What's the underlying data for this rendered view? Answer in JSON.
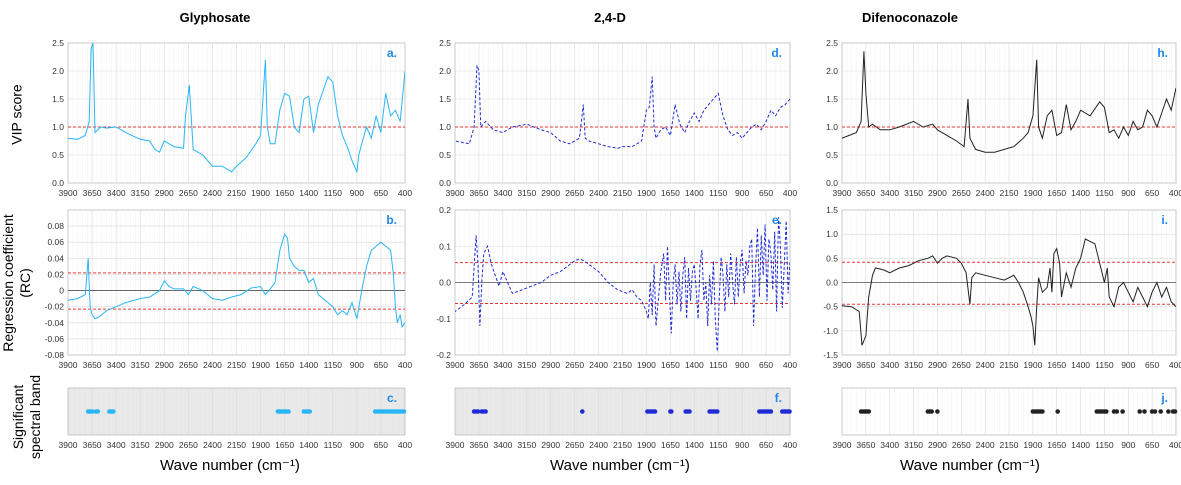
{
  "colors": {
    "glyphosate": "#29b6f6",
    "d24": "#1f2bd6",
    "difenoconazole": "#222222",
    "threshold": "#e53935",
    "grid": "#d9d9d9",
    "panel_label": "#1e88e5",
    "band_bg": "#e8e8e8"
  },
  "columns": [
    {
      "key": "glyphosate",
      "title": "Glyphosate"
    },
    {
      "key": "d24",
      "title": "2,4-D"
    },
    {
      "key": "difenoconazole",
      "title": "Difenoconazole"
    }
  ],
  "row_labels": {
    "vip": "VIP score",
    "rc_line1": "Regression coefficient",
    "rc_line2": "(RC)",
    "band_line1": "Significant",
    "band_line2": "spectral band"
  },
  "x_axis": {
    "label": "Wave number (cm⁻¹)",
    "ticks": [
      "3900",
      "3650",
      "3400",
      "3150",
      "2900",
      "2650",
      "2400",
      "2150",
      "1900",
      "1650",
      "1400",
      "1150",
      "900",
      "650",
      "400"
    ],
    "range": [
      3900,
      400
    ]
  },
  "chart_data": [
    {
      "type": "line",
      "panel": "a.",
      "series": "Glyphosate",
      "row": "VIP score",
      "ylim": [
        0,
        2.5
      ],
      "yticks": [
        "0.0",
        "0.5",
        "1.0",
        "1.5",
        "2.0",
        "2.5"
      ],
      "threshold": [
        1.0
      ],
      "x": [
        3990,
        3900,
        3800,
        3720,
        3680,
        3660,
        3640,
        3620,
        3560,
        3500,
        3400,
        3300,
        3150,
        3050,
        3000,
        2950,
        2900,
        2800,
        2700,
        2680,
        2640,
        2600,
        2500,
        2400,
        2300,
        2200,
        2150,
        2050,
        1950,
        1900,
        1850,
        1830,
        1800,
        1750,
        1700,
        1650,
        1600,
        1550,
        1500,
        1450,
        1400,
        1350,
        1300,
        1200,
        1150,
        1100,
        1050,
        1000,
        950,
        900,
        880,
        850,
        800,
        750,
        700,
        650,
        600,
        550,
        500,
        450,
        400
      ],
      "y": [
        0.9,
        0.8,
        0.78,
        0.85,
        1.1,
        2.4,
        2.5,
        0.9,
        1.0,
        0.98,
        1.0,
        0.9,
        0.78,
        0.75,
        0.6,
        0.55,
        0.75,
        0.65,
        0.62,
        1.2,
        1.75,
        0.6,
        0.5,
        0.3,
        0.3,
        0.2,
        0.3,
        0.45,
        0.7,
        0.85,
        2.2,
        1.0,
        0.7,
        0.7,
        1.3,
        1.6,
        1.55,
        1.0,
        0.9,
        1.5,
        1.55,
        0.9,
        1.4,
        1.9,
        1.8,
        1.2,
        0.85,
        0.65,
        0.4,
        0.2,
        0.5,
        0.7,
        1.0,
        0.8,
        1.2,
        0.9,
        1.6,
        1.2,
        1.3,
        1.1,
        2.0
      ]
    },
    {
      "type": "line",
      "panel": "d.",
      "series": "2,4-D",
      "row": "VIP score",
      "ylim": [
        0,
        2.5
      ],
      "yticks": [
        "0.0",
        "0.5",
        "1.0",
        "1.5",
        "2.0",
        "2.5"
      ],
      "threshold": [
        1.0
      ],
      "x": [
        3990,
        3900,
        3750,
        3700,
        3670,
        3650,
        3630,
        3580,
        3500,
        3400,
        3300,
        3150,
        3000,
        2900,
        2800,
        2700,
        2600,
        2560,
        2540,
        2500,
        2400,
        2300,
        2200,
        2150,
        2050,
        1950,
        1900,
        1870,
        1840,
        1820,
        1800,
        1750,
        1700,
        1650,
        1600,
        1550,
        1500,
        1450,
        1400,
        1350,
        1300,
        1200,
        1150,
        1100,
        1050,
        1000,
        950,
        900,
        850,
        800,
        750,
        700,
        650,
        600,
        550,
        500,
        450,
        400
      ],
      "y": [
        0.8,
        0.75,
        0.7,
        1.0,
        2.1,
        2.0,
        1.0,
        1.1,
        0.95,
        0.9,
        1.0,
        1.05,
        0.95,
        0.9,
        0.75,
        0.7,
        0.8,
        1.4,
        0.8,
        0.75,
        0.7,
        0.65,
        0.62,
        0.65,
        0.65,
        0.75,
        1.3,
        1.35,
        1.9,
        1.0,
        0.8,
        0.95,
        1.0,
        0.85,
        1.4,
        1.05,
        0.9,
        1.1,
        1.25,
        1.1,
        1.3,
        1.5,
        1.6,
        1.2,
        0.95,
        0.85,
        0.9,
        0.8,
        0.9,
        1.0,
        1.05,
        0.95,
        1.1,
        1.3,
        1.2,
        1.35,
        1.4,
        1.5
      ]
    },
    {
      "type": "line",
      "panel": "h.",
      "series": "Difenoconazole",
      "row": "VIP score",
      "ylim": [
        0,
        2.5
      ],
      "yticks": [
        "0.0",
        "0.5",
        "1.0",
        "1.5",
        "2.0",
        "2.5"
      ],
      "threshold": [
        1.0
      ],
      "x": [
        3990,
        3900,
        3750,
        3700,
        3670,
        3650,
        3620,
        3580,
        3500,
        3400,
        3300,
        3150,
        3050,
        2950,
        2900,
        2800,
        2700,
        2620,
        2580,
        2560,
        2500,
        2400,
        2300,
        2200,
        2100,
        2000,
        1950,
        1900,
        1860,
        1840,
        1800,
        1750,
        1700,
        1650,
        1600,
        1550,
        1500,
        1450,
        1400,
        1300,
        1200,
        1150,
        1100,
        1050,
        1000,
        950,
        900,
        850,
        800,
        750,
        700,
        650,
        600,
        550,
        500,
        450,
        400
      ],
      "y": [
        0.8,
        0.8,
        0.9,
        1.1,
        2.35,
        1.6,
        1.0,
        1.05,
        0.95,
        0.95,
        1.0,
        1.1,
        1.0,
        1.05,
        0.95,
        0.85,
        0.75,
        0.65,
        1.5,
        0.8,
        0.6,
        0.55,
        0.55,
        0.6,
        0.65,
        0.8,
        0.9,
        1.2,
        2.2,
        1.0,
        0.8,
        1.2,
        1.3,
        0.85,
        0.9,
        1.4,
        0.95,
        1.1,
        1.3,
        1.2,
        1.45,
        1.35,
        0.9,
        0.95,
        0.8,
        1.0,
        0.85,
        1.1,
        0.95,
        1.0,
        1.3,
        1.2,
        1.0,
        1.25,
        1.5,
        1.3,
        1.7
      ]
    },
    {
      "type": "line",
      "panel": "b.",
      "series": "Glyphosate",
      "row": "Regression coefficient (RC)",
      "ylim": [
        -0.08,
        0.1
      ],
      "yticks": [
        "-0.08",
        "-0.06",
        "-0.04",
        "-0.02",
        "0",
        "0.02",
        "0.04",
        "0.06",
        "0.08"
      ],
      "threshold": [
        0.022,
        -0.023
      ],
      "x": [
        3990,
        3900,
        3800,
        3720,
        3690,
        3670,
        3650,
        3620,
        3580,
        3500,
        3400,
        3300,
        3150,
        3050,
        2950,
        2900,
        2850,
        2800,
        2700,
        2650,
        2600,
        2500,
        2400,
        2300,
        2200,
        2100,
        2000,
        1900,
        1850,
        1800,
        1750,
        1700,
        1650,
        1620,
        1600,
        1550,
        1500,
        1450,
        1400,
        1350,
        1300,
        1200,
        1150,
        1100,
        1050,
        1000,
        950,
        900,
        850,
        800,
        750,
        700,
        650,
        600,
        550,
        520,
        500,
        480,
        450,
        430,
        400
      ],
      "y": [
        -0.01,
        -0.012,
        -0.01,
        -0.005,
        0.04,
        -0.02,
        -0.03,
        -0.035,
        -0.033,
        -0.025,
        -0.02,
        -0.015,
        -0.01,
        -0.008,
        0.0,
        0.012,
        0.005,
        0.002,
        0.002,
        -0.005,
        0.005,
        0.0,
        -0.01,
        -0.012,
        -0.008,
        -0.005,
        0.003,
        0.005,
        -0.005,
        0.002,
        0.01,
        0.05,
        0.07,
        0.065,
        0.04,
        0.03,
        0.025,
        0.025,
        0.01,
        0.015,
        -0.005,
        -0.015,
        -0.02,
        -0.03,
        -0.025,
        -0.03,
        -0.015,
        -0.035,
        0.0,
        0.03,
        0.05,
        0.055,
        0.06,
        0.055,
        0.05,
        0.02,
        -0.02,
        -0.04,
        -0.03,
        -0.045,
        -0.04
      ]
    },
    {
      "type": "line",
      "panel": "e.",
      "series": "2,4-D",
      "row": "Regression coefficient (RC)",
      "ylim": [
        -0.2,
        0.2
      ],
      "yticks": [
        "-0.2",
        "-0.1",
        "0.0",
        "0.1",
        "0.2"
      ],
      "threshold": [
        0.055,
        -0.058
      ],
      "x": [
        3990,
        3900,
        3800,
        3720,
        3680,
        3660,
        3640,
        3620,
        3600,
        3560,
        3520,
        3480,
        3440,
        3400,
        3300,
        3200,
        3100,
        3000,
        2900,
        2800,
        2700,
        2650,
        2600,
        2550,
        2500,
        2400,
        2300,
        2200,
        2100,
        2050,
        2000,
        1950,
        1900,
        1880,
        1860,
        1840,
        1820,
        1800,
        1750,
        1720,
        1700,
        1680,
        1660,
        1640,
        1620,
        1600,
        1580,
        1560,
        1540,
        1520,
        1500,
        1480,
        1460,
        1440,
        1420,
        1400,
        1380,
        1360,
        1340,
        1320,
        1300,
        1280,
        1260,
        1240,
        1220,
        1200,
        1180,
        1160,
        1140,
        1120,
        1100,
        1080,
        1060,
        1040,
        1020,
        1000,
        980,
        960,
        940,
        920,
        900,
        880,
        860,
        840,
        820,
        800,
        780,
        760,
        740,
        720,
        700,
        680,
        660,
        640,
        620,
        600,
        580,
        560,
        540,
        520,
        500,
        480,
        460,
        440,
        420,
        400
      ],
      "y": [
        -0.1,
        -0.08,
        -0.06,
        -0.04,
        0.13,
        0.05,
        -0.12,
        0.0,
        0.08,
        0.1,
        0.05,
        0.02,
        -0.01,
        0.03,
        -0.03,
        -0.02,
        -0.01,
        0.0,
        0.02,
        0.03,
        0.05,
        0.06,
        0.065,
        0.06,
        0.05,
        0.03,
        0.0,
        -0.02,
        -0.03,
        -0.02,
        -0.04,
        -0.05,
        -0.08,
        -0.1,
        0.0,
        -0.09,
        0.05,
        -0.12,
        0.03,
        0.08,
        -0.05,
        0.1,
        -0.03,
        -0.14,
        0.0,
        0.05,
        -0.06,
        0.03,
        -0.08,
        0.02,
        0.07,
        -0.1,
        0.04,
        -0.05,
        0.03,
        0.05,
        -0.02,
        -0.1,
        0.05,
        0.09,
        -0.05,
        0.0,
        -0.12,
        0.02,
        -0.06,
        0.06,
        -0.1,
        -0.19,
        -0.05,
        0.07,
        0.02,
        -0.08,
        0.05,
        -0.04,
        0.08,
        0.0,
        -0.06,
        0.07,
        -0.04,
        0.05,
        0.09,
        -0.03,
        0.06,
        0.02,
        0.1,
        0.12,
        -0.12,
        0.04,
        0.15,
        -0.04,
        0.13,
        0.02,
        0.16,
        -0.05,
        0.12,
        0.08,
        -0.02,
        0.14,
        -0.08,
        0.18,
        0.1,
        -0.07,
        0.05,
        0.17,
        -0.03,
        0.06
      ]
    },
    {
      "type": "line",
      "panel": "i.",
      "series": "Difenoconazole",
      "row": "Regression coefficient (RC)",
      "ylim": [
        -1.5,
        1.5
      ],
      "yticks": [
        "-1.5",
        "-1.0",
        "-0.5",
        "0.0",
        "0.5",
        "1.0",
        "1.5"
      ],
      "threshold": [
        0.42,
        -0.45
      ],
      "x": [
        3990,
        3900,
        3800,
        3720,
        3690,
        3670,
        3650,
        3620,
        3580,
        3550,
        3500,
        3450,
        3400,
        3300,
        3200,
        3100,
        3000,
        2950,
        2900,
        2850,
        2800,
        2700,
        2650,
        2600,
        2560,
        2540,
        2500,
        2400,
        2300,
        2200,
        2100,
        2050,
        2000,
        1950,
        1920,
        1900,
        1880,
        1860,
        1840,
        1800,
        1750,
        1720,
        1700,
        1680,
        1650,
        1620,
        1600,
        1550,
        1500,
        1450,
        1400,
        1350,
        1300,
        1250,
        1200,
        1150,
        1120,
        1100,
        1050,
        1000,
        950,
        900,
        850,
        800,
        750,
        700,
        650,
        600,
        550,
        500,
        450,
        400
      ],
      "y": [
        -0.5,
        -0.48,
        -0.5,
        -0.6,
        -1.3,
        -1.2,
        -1.1,
        -0.3,
        0.15,
        0.3,
        0.28,
        0.25,
        0.2,
        0.3,
        0.35,
        0.45,
        0.5,
        0.55,
        0.4,
        0.5,
        0.55,
        0.5,
        0.4,
        0.2,
        -0.45,
        0.1,
        0.2,
        0.15,
        0.1,
        0.05,
        0.15,
        0.0,
        -0.2,
        -0.5,
        -0.7,
        -0.9,
        -1.3,
        -0.5,
        0.1,
        -0.2,
        -0.1,
        0.3,
        -0.2,
        0.6,
        0.7,
        0.4,
        -0.3,
        0.2,
        -0.1,
        0.3,
        0.5,
        0.9,
        0.85,
        0.8,
        0.4,
        0.0,
        0.3,
        -0.3,
        -0.5,
        -0.1,
        0.0,
        -0.2,
        -0.4,
        -0.1,
        -0.3,
        -0.5,
        -0.2,
        0.0,
        -0.3,
        -0.1,
        -0.4,
        -0.5
      ]
    },
    {
      "type": "scatter",
      "panel": "c.",
      "series": "Glyphosate",
      "row": "Significant spectral band",
      "x": [
        3690,
        3670,
        3650,
        3610,
        3590,
        3470,
        3450,
        3430,
        1720,
        1700,
        1690,
        1670,
        1650,
        1630,
        1610,
        1450,
        1430,
        1410,
        1390,
        710,
        690,
        670,
        650,
        630,
        610,
        590,
        570,
        550,
        530,
        510,
        490,
        470,
        450,
        430,
        410
      ]
    },
    {
      "type": "scatter",
      "panel": "f.",
      "series": "2,4-D",
      "row": "Significant spectral band",
      "x": [
        3700,
        3680,
        3660,
        3620,
        3600,
        3580,
        2570,
        1890,
        1870,
        1850,
        1830,
        1810,
        1650,
        1640,
        1490,
        1470,
        1450,
        1240,
        1220,
        1200,
        1180,
        1160,
        720,
        700,
        680,
        660,
        640,
        620,
        600,
        480,
        460,
        440,
        420,
        405
      ]
    },
    {
      "type": "scatter",
      "panel": "j.",
      "series": "Difenoconazole",
      "row": "Significant spectral band",
      "x": [
        3700,
        3680,
        3660,
        3640,
        3620,
        3000,
        2980,
        2960,
        2900,
        1900,
        1880,
        1860,
        1840,
        1820,
        1800,
        1640,
        1230,
        1210,
        1190,
        1170,
        1150,
        1130,
        1050,
        1020,
        960,
        780,
        730,
        650,
        620,
        560,
        480,
        430,
        410
      ]
    }
  ]
}
